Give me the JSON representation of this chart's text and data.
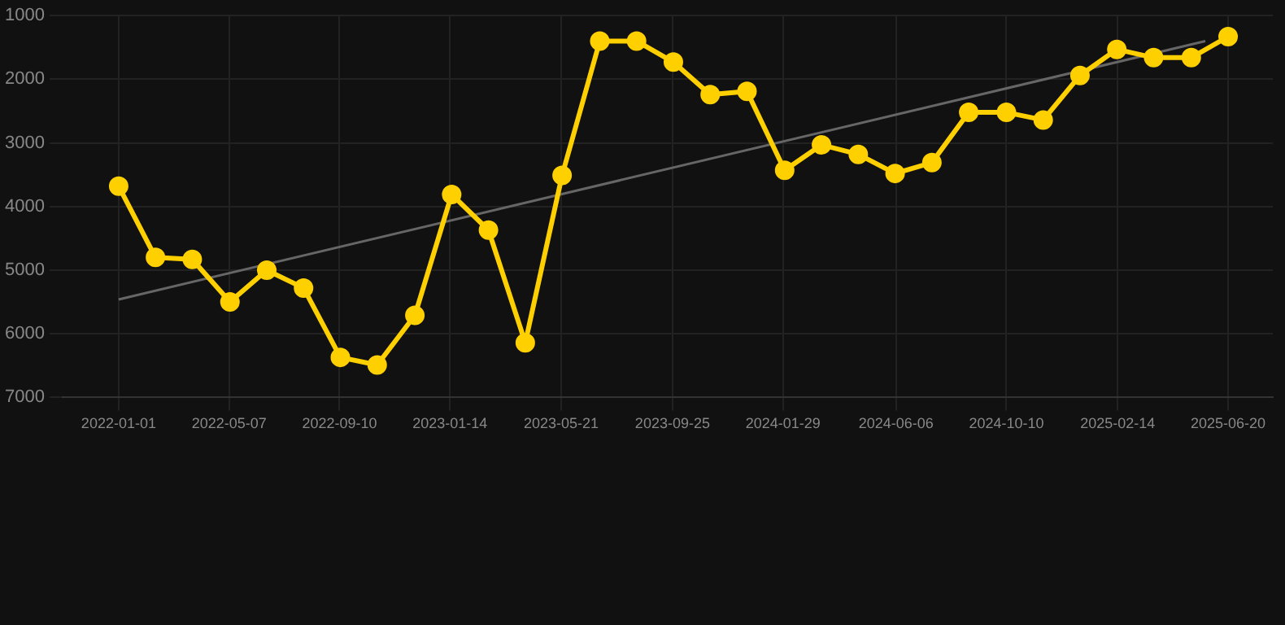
{
  "chart_data": {
    "type": "line",
    "xlim": [
      "2021-10-29",
      "2025-08-10"
    ],
    "xticks": [
      "2022-01-01",
      "2022-05-07",
      "2022-09-10",
      "2023-01-14",
      "2023-05-21",
      "2023-09-25",
      "2024-01-29",
      "2024-06-06",
      "2024-10-10",
      "2025-02-14",
      "2025-06-20"
    ],
    "ylim": [
      7000,
      1000
    ],
    "yticks": [
      1000,
      2000,
      3000,
      4000,
      5000,
      6000,
      7000
    ],
    "grid": true,
    "marker": "circle",
    "line_style": "solid",
    "series": [
      {
        "color": "#ffd000",
        "x": [
          "2022-01-01",
          "2022-02-12",
          "2022-03-26",
          "2022-05-08",
          "2022-06-19",
          "2022-07-31",
          "2022-09-11",
          "2022-10-23",
          "2022-12-05",
          "2023-01-16",
          "2023-02-27",
          "2023-04-10",
          "2023-05-22",
          "2023-07-04",
          "2023-08-15",
          "2023-09-26",
          "2023-11-07",
          "2023-12-19",
          "2024-01-31",
          "2024-03-13",
          "2024-04-24",
          "2024-06-05",
          "2024-07-17",
          "2024-08-28",
          "2024-10-10",
          "2024-11-21",
          "2025-01-02",
          "2025-02-13",
          "2025-03-27",
          "2025-05-09",
          "2025-06-20"
        ],
        "values": [
          3680,
          4800,
          4830,
          5500,
          5000,
          5280,
          6370,
          6490,
          5710,
          3810,
          4370,
          6140,
          3510,
          1400,
          1400,
          1730,
          2240,
          2190,
          3430,
          3030,
          3180,
          3480,
          3310,
          2520,
          2520,
          2640,
          1940,
          1530,
          1660,
          1660,
          1330
        ]
      },
      {
        "type": "line",
        "color": "#666666",
        "marker": "none",
        "x": [
          "2022-01-01",
          "2025-05-25"
        ],
        "values": [
          5460,
          1400
        ]
      }
    ]
  }
}
